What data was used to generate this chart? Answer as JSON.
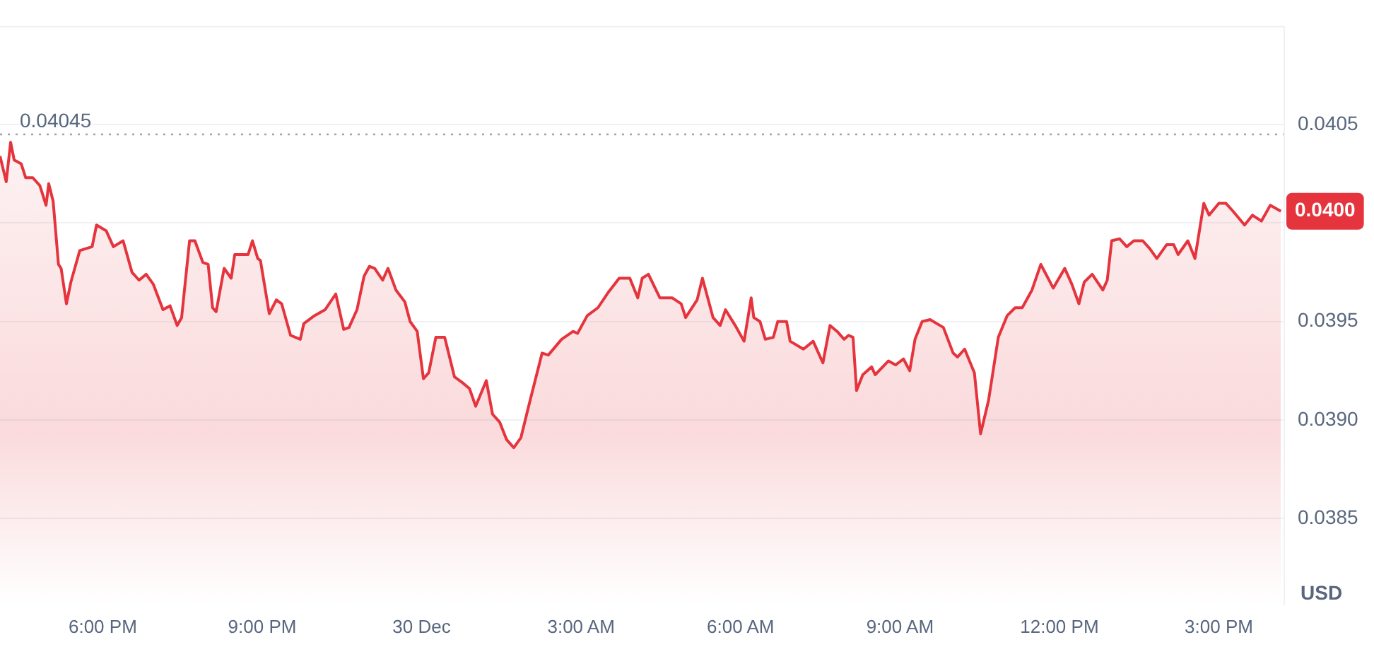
{
  "chart_data": {
    "type": "area",
    "ylabel": "USD",
    "grid": "y",
    "legend": false,
    "marker": "none",
    "line_style": "solid",
    "xlim": [
      "--12-29T16:04",
      "--12-30T16:13"
    ],
    "xticks": [
      {
        "value": "--12-29T18:00",
        "label": "6:00 PM"
      },
      {
        "value": "--12-29T21:00",
        "label": "9:00 PM"
      },
      {
        "value": "--12-30T00:00",
        "label": "30 Dec"
      },
      {
        "value": "--12-30T03:00",
        "label": "3:00 AM"
      },
      {
        "value": "--12-30T06:00",
        "label": "6:00 AM"
      },
      {
        "value": "--12-30T09:00",
        "label": "9:00 AM"
      },
      {
        "value": "--12-30T12:00",
        "label": "12:00 PM"
      },
      {
        "value": "--12-30T15:00",
        "label": "3:00 PM"
      }
    ],
    "ylim": [
      0.03806,
      0.041
    ],
    "yticks": [
      0.0385,
      {
        "value": 0.039,
        "label": "0.0390"
      },
      0.0395,
      {
        "value": 0.04,
        "label": null
      },
      0.0405
    ],
    "ref_lines": [
      {
        "axis": "y",
        "value": 0.04045,
        "label": "0.04045",
        "line_style": "dotted",
        "color": "#a0a4ab"
      }
    ],
    "annotations": [
      "0.0400"
    ],
    "series": [
      {
        "color": "#e5343d",
        "x": [
          "--12-29T16:04",
          "--12-29T16:11",
          "--12-29T16:16",
          "--12-29T16:20",
          "--12-29T16:28",
          "--12-29T16:33",
          "--12-29T16:41",
          "--12-29T16:49",
          "--12-29T16:56",
          "--12-29T16:59",
          "--12-29T17:04",
          "--12-29T17:10",
          "--12-29T17:13",
          "--12-29T17:19",
          "--12-29T17:24",
          "--12-29T17:34",
          "--12-29T17:48",
          "--12-29T17:53",
          "--12-29T18:04",
          "--12-29T18:12",
          "--12-29T18:23",
          "--12-29T18:33",
          "--12-29T18:41",
          "--12-29T18:49",
          "--12-29T18:57",
          "--12-29T19:08",
          "--12-29T19:16",
          "--12-29T19:24",
          "--12-29T19:29",
          "--12-29T19:38",
          "--12-29T19:44",
          "--12-29T19:53",
          "--12-29T19:59",
          "--12-29T20:04",
          "--12-29T20:08",
          "--12-29T20:17",
          "--12-29T20:25",
          "--12-29T20:29",
          "--12-29T20:44",
          "--12-29T20:49",
          "--12-29T20:55",
          "--12-29T20:58",
          "--12-29T21:08",
          "--12-29T21:16",
          "--12-29T21:22",
          "--12-29T21:32",
          "--12-29T21:43",
          "--12-29T21:47",
          "--12-29T21:59",
          "--12-29T22:11",
          "--12-29T22:23",
          "--12-29T22:32",
          "--12-29T22:38",
          "--12-29T22:47",
          "--12-29T22:55",
          "--12-29T23:01",
          "--12-29T23:07",
          "--12-29T23:16",
          "--12-29T23:22",
          "--12-29T23:31",
          "--12-29T23:41",
          "--12-29T23:47",
          "--12-29T23:55",
          "--12-30T00:02",
          "--12-30T00:08",
          "--12-30T00:16",
          "--12-30T00:26",
          "--12-30T00:37",
          "--12-30T00:46",
          "--12-30T00:54",
          "--12-30T01:01",
          "--12-30T01:13",
          "--12-30T01:20",
          "--12-30T01:28",
          "--12-30T01:36",
          "--12-30T01:44",
          "--12-30T01:52",
          "--12-30T02:03",
          "--12-30T02:16",
          "--12-30T02:23",
          "--12-30T02:38",
          "--12-30T02:51",
          "--12-30T02:56",
          "--12-30T03:07",
          "--12-30T03:19",
          "--12-30T03:31",
          "--12-30T03:43",
          "--12-30T03:55",
          "--12-30T04:04",
          "--12-30T04:09",
          "--12-30T04:16",
          "--12-30T04:29",
          "--12-30T04:43",
          "--12-30T04:53",
          "--12-30T04:58",
          "--12-30T05:11",
          "--12-30T05:17",
          "--12-30T05:29",
          "--12-30T05:37",
          "--12-30T05:43",
          "--12-30T05:54",
          "--12-30T06:04",
          "--12-30T06:12",
          "--12-30T06:15",
          "--12-30T06:22",
          "--12-30T06:28",
          "--12-30T06:37",
          "--12-30T06:42",
          "--12-30T06:52",
          "--12-30T06:56",
          "--12-30T07:11",
          "--12-30T07:22",
          "--12-30T07:33",
          "--12-30T07:41",
          "--12-30T07:49",
          "--12-30T07:57",
          "--12-30T08:02",
          "--12-30T08:07",
          "--12-30T08:11",
          "--12-30T08:18",
          "--12-30T08:28",
          "--12-30T08:32",
          "--12-30T08:47",
          "--12-30T08:55",
          "--12-30T09:04",
          "--12-30T09:11",
          "--12-30T09:17",
          "--12-30T09:25",
          "--12-30T09:34",
          "--12-30T09:49",
          "--12-30T10:00",
          "--12-30T10:05",
          "--12-30T10:13",
          "--12-30T10:24",
          "--12-30T10:31",
          "--12-30T10:40",
          "--12-30T10:51",
          "--12-30T11:01",
          "--12-30T11:10",
          "--12-30T11:18",
          "--12-30T11:29",
          "--12-30T11:39",
          "--12-30T11:53",
          "--12-30T12:06",
          "--12-30T12:14",
          "--12-30T12:22",
          "--12-30T12:28",
          "--12-30T12:37",
          "--12-30T12:49",
          "--12-30T12:54",
          "--12-30T12:59",
          "--12-30T13:08",
          "--12-30T13:16",
          "--12-30T13:24",
          "--12-30T13:34",
          "--12-30T13:42",
          "--12-30T13:50",
          "--12-30T14:01",
          "--12-30T14:09",
          "--12-30T14:14",
          "--12-30T14:25",
          "--12-30T14:33",
          "--12-30T14:43",
          "--12-30T14:49",
          "--12-30T15:00",
          "--12-30T15:08",
          "--12-30T15:16",
          "--12-30T15:29",
          "--12-30T15:38",
          "--12-30T15:48",
          "--12-30T15:58",
          "--12-30T16:10"
        ],
        "values": [
          0.04034,
          0.04021,
          0.04041,
          0.04032,
          0.0403,
          0.04023,
          0.04023,
          0.04019,
          0.04009,
          0.0402,
          0.04011,
          0.03979,
          0.03977,
          0.03959,
          0.0397,
          0.03986,
          0.03988,
          0.03999,
          0.03996,
          0.03988,
          0.03991,
          0.03975,
          0.03971,
          0.03974,
          0.03969,
          0.03956,
          0.03958,
          0.03948,
          0.03952,
          0.03991,
          0.03991,
          0.0398,
          0.03979,
          0.03957,
          0.03955,
          0.03977,
          0.03972,
          0.03984,
          0.03984,
          0.03991,
          0.03982,
          0.03981,
          0.03954,
          0.03961,
          0.03959,
          0.03943,
          0.03941,
          0.03949,
          0.03953,
          0.03956,
          0.03964,
          0.03946,
          0.03947,
          0.03956,
          0.03973,
          0.03978,
          0.03977,
          0.03971,
          0.03977,
          0.03966,
          0.0396,
          0.0395,
          0.03945,
          0.03921,
          0.03924,
          0.03942,
          0.03942,
          0.03922,
          0.03919,
          0.03916,
          0.03907,
          0.0392,
          0.03903,
          0.03899,
          0.0389,
          0.03886,
          0.03891,
          0.03911,
          0.03934,
          0.03933,
          0.03941,
          0.03945,
          0.03944,
          0.03953,
          0.03957,
          0.03965,
          0.03972,
          0.03972,
          0.03962,
          0.03972,
          0.03974,
          0.03962,
          0.03962,
          0.03959,
          0.03952,
          0.03961,
          0.03972,
          0.03952,
          0.03948,
          0.03956,
          0.03948,
          0.0394,
          0.03962,
          0.03952,
          0.0395,
          0.03941,
          0.03942,
          0.0395,
          0.0395,
          0.0394,
          0.03936,
          0.0394,
          0.03929,
          0.03948,
          0.03945,
          0.03941,
          0.03943,
          0.03942,
          0.03915,
          0.03923,
          0.03927,
          0.03923,
          0.0393,
          0.03928,
          0.03931,
          0.03925,
          0.03941,
          0.0395,
          0.03951,
          0.03947,
          0.03934,
          0.03932,
          0.03936,
          0.03924,
          0.03893,
          0.0391,
          0.03942,
          0.03953,
          0.03957,
          0.03957,
          0.03966,
          0.03979,
          0.03967,
          0.03977,
          0.03969,
          0.03959,
          0.0397,
          0.03974,
          0.03966,
          0.03971,
          0.03991,
          0.03992,
          0.03988,
          0.03991,
          0.03991,
          0.03987,
          0.03982,
          0.03989,
          0.03989,
          0.03984,
          0.03991,
          0.03982,
          0.0401,
          0.04004,
          0.0401,
          0.0401,
          0.04006,
          0.03999,
          0.04004,
          0.04001,
          0.04009,
          0.04006
        ]
      }
    ]
  }
}
